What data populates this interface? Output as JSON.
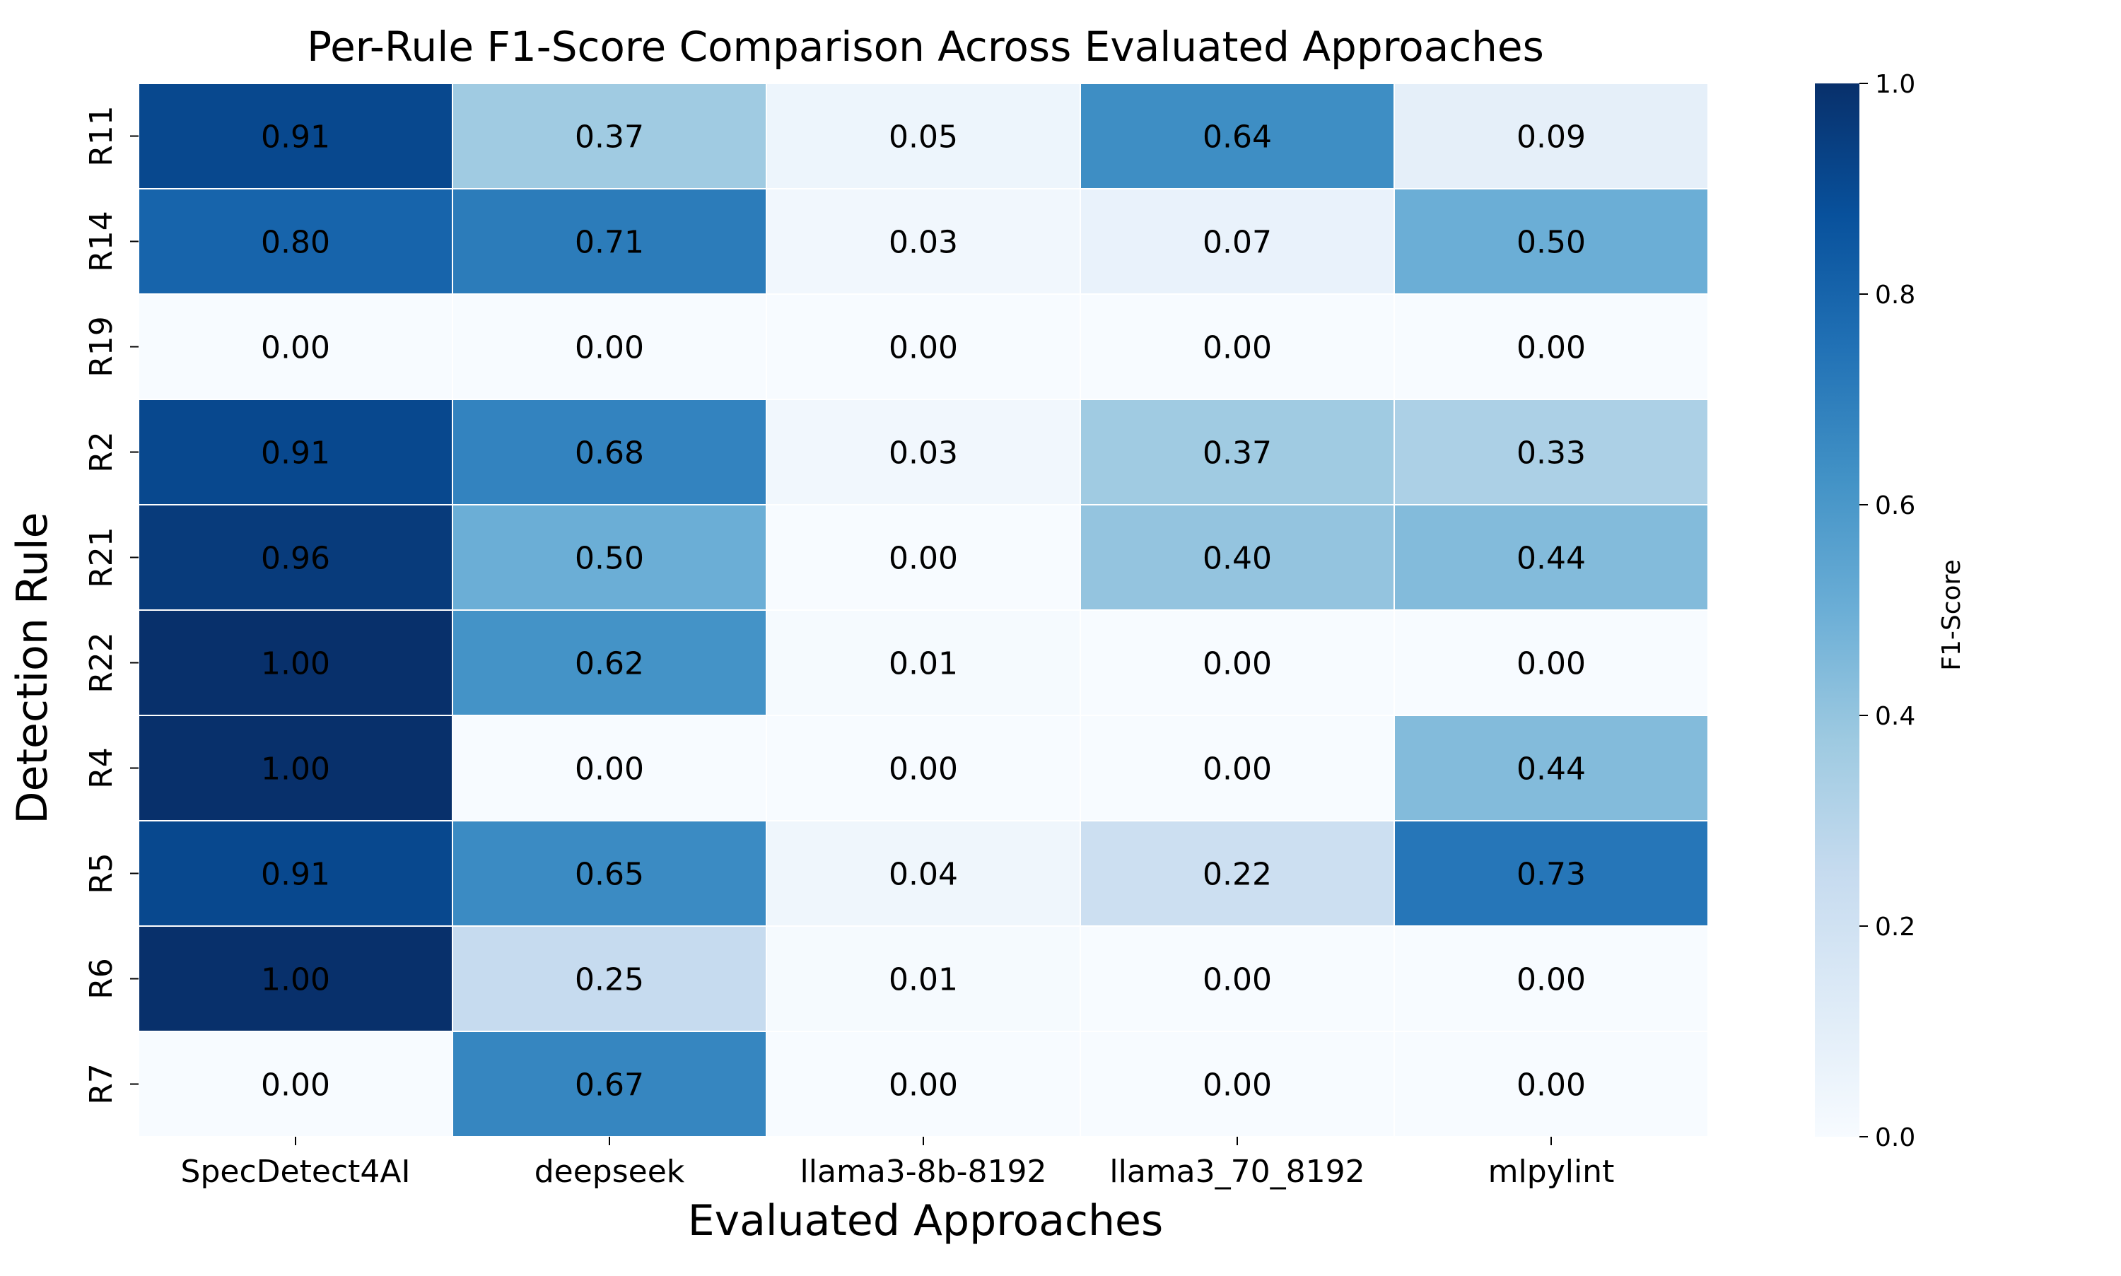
{
  "chart_data": {
    "type": "heatmap",
    "title": "Per-Rule F1-Score Comparison Across Evaluated Approaches",
    "xlabel": "Evaluated Approaches",
    "ylabel": "Detection Rule",
    "x_categories": [
      "SpecDetect4AI",
      "deepseek",
      "llama3-8b-8192",
      "llama3_70_8192",
      "mlpylint"
    ],
    "y_categories": [
      "R11",
      "R14",
      "R19",
      "R2",
      "R21",
      "R22",
      "R4",
      "R5",
      "R6",
      "R7"
    ],
    "values": [
      [
        0.91,
        0.37,
        0.05,
        0.64,
        0.09
      ],
      [
        0.8,
        0.71,
        0.03,
        0.07,
        0.5
      ],
      [
        0.0,
        0.0,
        0.0,
        0.0,
        0.0
      ],
      [
        0.91,
        0.68,
        0.03,
        0.37,
        0.33
      ],
      [
        0.96,
        0.5,
        0.0,
        0.4,
        0.44
      ],
      [
        1.0,
        0.62,
        0.01,
        0.0,
        0.0
      ],
      [
        1.0,
        0.0,
        0.0,
        0.0,
        0.44
      ],
      [
        0.91,
        0.65,
        0.04,
        0.22,
        0.73
      ],
      [
        1.0,
        0.25,
        0.01,
        0.0,
        0.0
      ],
      [
        0.0,
        0.67,
        0.0,
        0.0,
        0.0
      ]
    ],
    "value_format": "2 decimals",
    "colormap": "Blues",
    "colorbar": {
      "label": "F1-Score",
      "range": [
        0.0,
        1.0
      ],
      "ticks": [
        "0.0",
        "0.2",
        "0.4",
        "0.6",
        "0.8",
        "1.0"
      ]
    }
  }
}
